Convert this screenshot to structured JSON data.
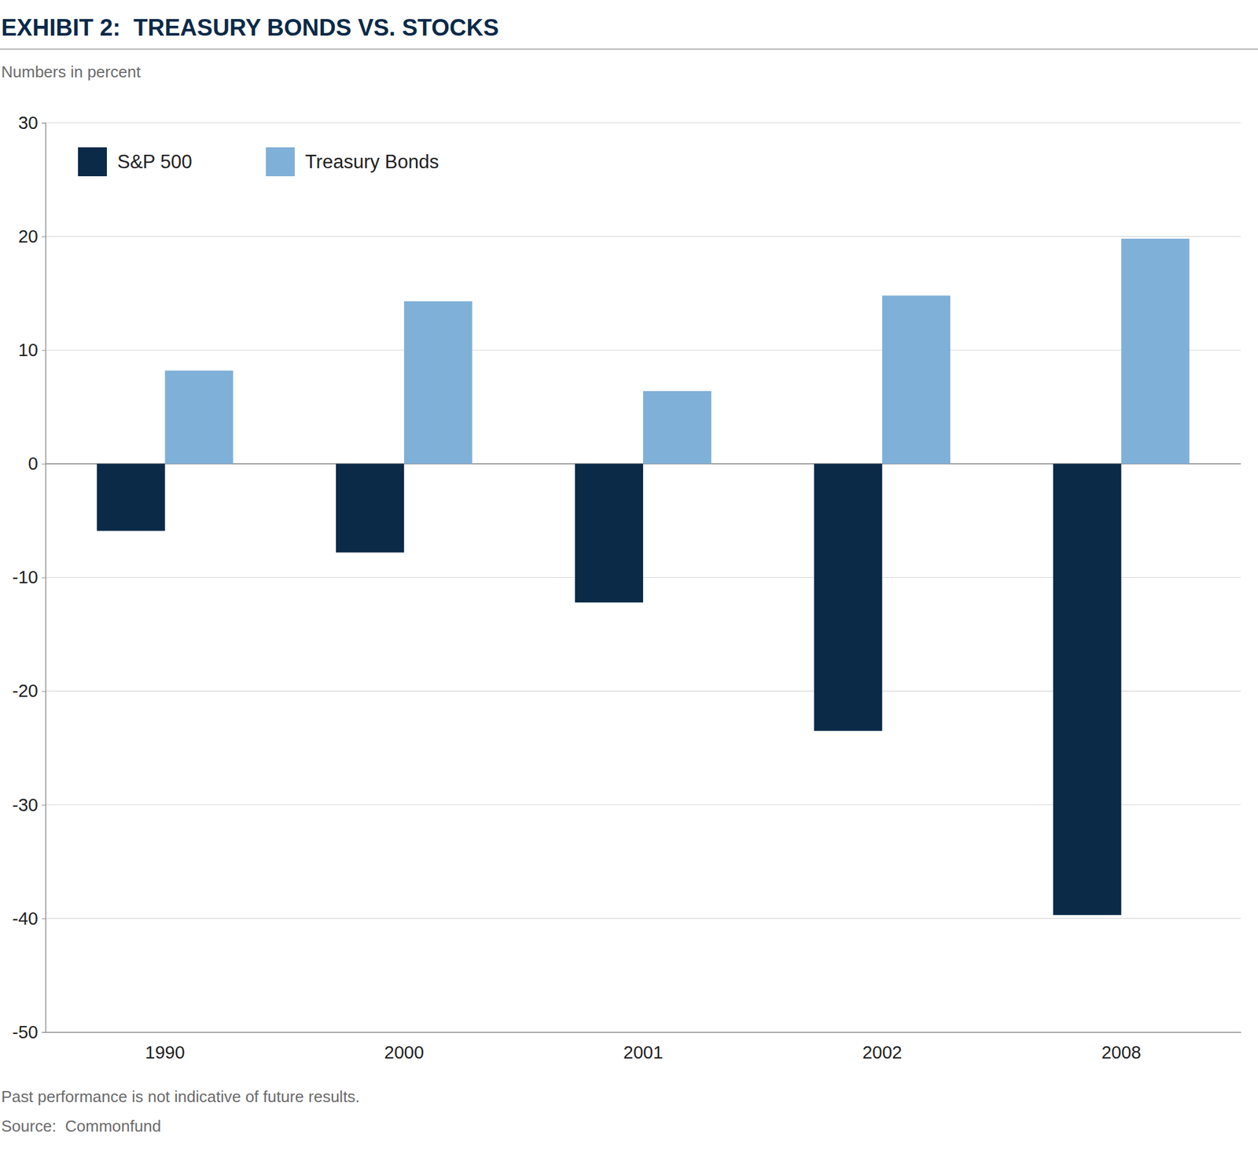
{
  "chart_data": {
    "type": "bar",
    "title": "EXHIBIT 2:  TREASURY BONDS VS. STOCKS",
    "subtitle": "Numbers in percent",
    "categories": [
      "1990",
      "2000",
      "2001",
      "2002",
      "2008"
    ],
    "series": [
      {
        "name": "S&P 500",
        "color": "#0b2a48",
        "values": [
          -5.9,
          -7.8,
          -12.2,
          -23.5,
          -39.7
        ]
      },
      {
        "name": "Treasury Bonds",
        "color": "#7fb0d8",
        "values": [
          8.2,
          14.3,
          6.4,
          14.8,
          19.8
        ]
      }
    ],
    "ylim": [
      -50,
      30
    ],
    "yticks": [
      -50,
      -40,
      -30,
      -20,
      -10,
      0,
      10,
      20,
      30
    ],
    "grid": true,
    "legend": "upper left",
    "annotations": [
      "Past performance is not indicative of future results.",
      "Source:  Commonfund"
    ]
  }
}
